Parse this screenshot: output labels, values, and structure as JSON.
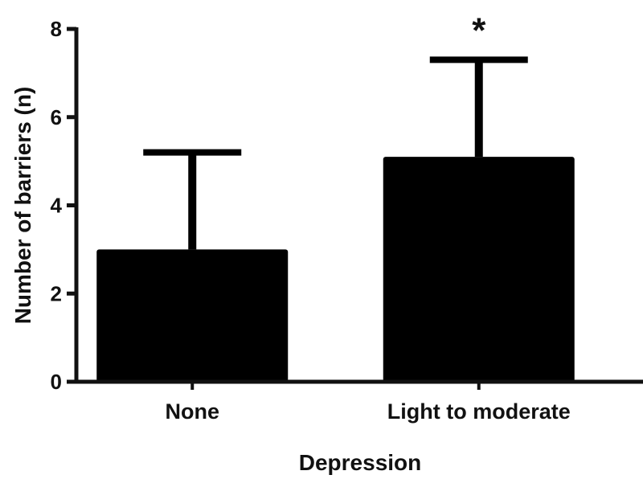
{
  "chart_data": {
    "type": "bar",
    "categories": [
      "None",
      "Light to moderate"
    ],
    "values": [
      3.0,
      5.1
    ],
    "error_upper": [
      5.2,
      7.3
    ],
    "xlabel": "Depression",
    "ylabel": "Number of barriers (n)",
    "ylim": [
      0,
      8
    ],
    "yticks": [
      0,
      2,
      4,
      6,
      8
    ],
    "grid": false,
    "annotations": [
      {
        "category": "Light to moderate",
        "text": "*"
      }
    ],
    "colors": {
      "bar": "#000000",
      "axis": "#111111"
    }
  }
}
